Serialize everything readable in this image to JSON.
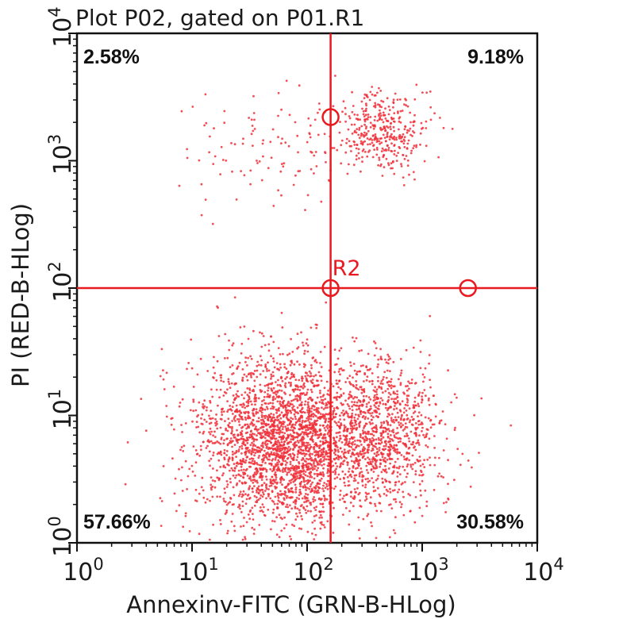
{
  "chart_data": {
    "type": "scatter",
    "title": "Plot P02, gated on P01.R1",
    "xlabel": "Annexinv-FITC (GRN-B-HLog)",
    "ylabel": "PI (RED-B-HLog)",
    "xscale": "log",
    "yscale": "log",
    "xlim": [
      1,
      10000
    ],
    "ylim": [
      1,
      10000
    ],
    "x_ticks": [
      {
        "value": 1,
        "base": "10",
        "exp": "0"
      },
      {
        "value": 10,
        "base": "10",
        "exp": "1"
      },
      {
        "value": 100,
        "base": "10",
        "exp": "2"
      },
      {
        "value": 1000,
        "base": "10",
        "exp": "3"
      },
      {
        "value": 10000,
        "base": "10",
        "exp": "4"
      }
    ],
    "y_ticks": [
      {
        "value": 1,
        "base": "10",
        "exp": "0"
      },
      {
        "value": 10,
        "base": "10",
        "exp": "1"
      },
      {
        "value": 100,
        "base": "10",
        "exp": "2"
      },
      {
        "value": 1000,
        "base": "10",
        "exp": "3"
      },
      {
        "value": 10000,
        "base": "10",
        "exp": "4"
      }
    ],
    "point_color": "#f0303a",
    "gate": {
      "name": "R2",
      "x": 160,
      "y": 100,
      "color": "#e8191f",
      "handles": [
        {
          "x": 160,
          "y": 2200
        },
        {
          "x": 160,
          "y": 100
        },
        {
          "x": 2500,
          "y": 100
        }
      ]
    },
    "quadrants": [
      {
        "position": "top-left",
        "label": "2.58%",
        "percent": 2.58
      },
      {
        "position": "top-right",
        "label": "9.18%",
        "percent": 9.18
      },
      {
        "position": "bottom-left",
        "label": "57.66%",
        "percent": 57.66
      },
      {
        "position": "bottom-right",
        "label": "30.58%",
        "percent": 30.58
      }
    ],
    "populations": [
      {
        "quadrant": "bottom-left",
        "count": 2400,
        "center": {
          "x": 75,
          "y": 6
        },
        "spread": {
          "x": 0.42,
          "y": 0.33
        }
      },
      {
        "quadrant": "bottom-right",
        "count": 1250,
        "center": {
          "x": 330,
          "y": 7
        },
        "spread": {
          "x": 0.33,
          "y": 0.3
        }
      },
      {
        "quadrant": "top-right",
        "count": 380,
        "center": {
          "x": 450,
          "y": 1700
        },
        "spread": {
          "x": 0.18,
          "y": 0.16
        }
      },
      {
        "quadrant": "top-left",
        "count": 110,
        "center": {
          "x": 70,
          "y": 1300
        },
        "spread": {
          "x": 0.42,
          "y": 0.24
        }
      }
    ],
    "grid": false,
    "legend": "none"
  }
}
